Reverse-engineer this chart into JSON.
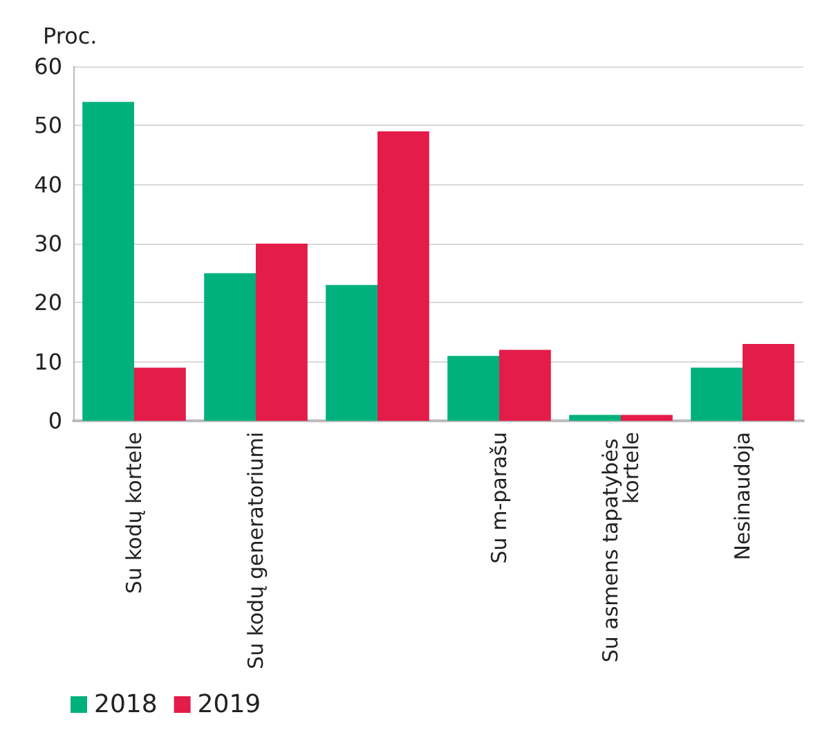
{
  "chart_data": {
    "type": "bar",
    "ylabel": "Proc.",
    "categories": [
      "Su kodų kortele",
      "Su kodų generatoriumi",
      null,
      "Su m-parašu",
      "Su asmens tapatybės kortele",
      "Nesinaudoja"
    ],
    "series": [
      {
        "name": "2018",
        "color": "#00b07d",
        "values": [
          54,
          25,
          23,
          11,
          1,
          9
        ]
      },
      {
        "name": "2019",
        "color": "#e31c4a",
        "values": [
          9,
          30,
          49,
          12,
          1,
          13
        ]
      }
    ],
    "ylim": [
      0,
      60
    ],
    "yticks": [
      0,
      10,
      20,
      30,
      40,
      50,
      60
    ],
    "grid": "y",
    "legend": "bottom left"
  }
}
